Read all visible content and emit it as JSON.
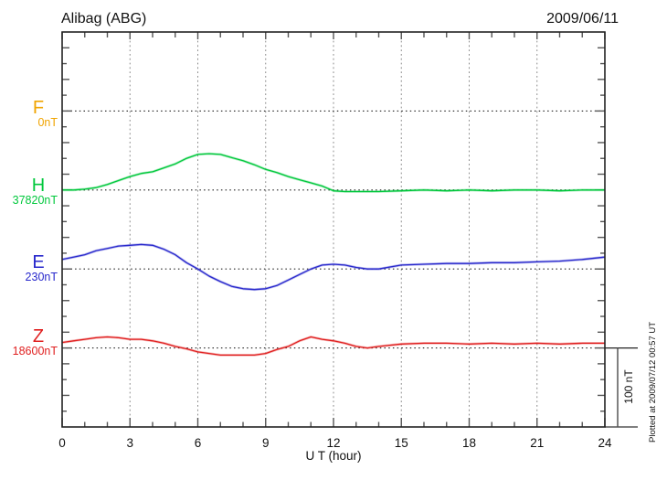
{
  "header": {
    "title": "Alibag (ABG)",
    "date": "2009/06/11"
  },
  "x_axis": {
    "label": "U T (hour)"
  },
  "scale_bar": {
    "label": "100 nT"
  },
  "plotted_note": "Plotted at 2009/07/12 00:57 UT",
  "components": [
    {
      "id": "F",
      "label": "F",
      "baseline_label": "0nT",
      "color": "#f0a400"
    },
    {
      "id": "H",
      "label": "H",
      "baseline_label": "37820nT",
      "color": "#00c83c"
    },
    {
      "id": "E",
      "label": "E",
      "baseline_label": "230nT",
      "color": "#2828cc"
    },
    {
      "id": "Z",
      "label": "Z",
      "baseline_label": "18600nT",
      "color": "#e02020"
    }
  ],
  "chart_data": {
    "type": "line",
    "title": "Alibag (ABG) magnetogram, 2009/06/11",
    "xlabel": "U T (hour)",
    "xlim": [
      0,
      24
    ],
    "x_ticks": [
      0,
      3,
      6,
      9,
      12,
      15,
      18,
      21,
      24
    ],
    "units": "nT offset from component baseline value",
    "scale_bar_nT": 100,
    "grid": {
      "vertical_at_hours": [
        3,
        6,
        9,
        12,
        15,
        18,
        21
      ],
      "horizontal": "dotted line at each component baseline"
    },
    "legend_position": "left margin component labels",
    "x": [
      0,
      0.5,
      1,
      1.5,
      2,
      2.5,
      3,
      3.5,
      4,
      4.5,
      5,
      5.5,
      6,
      6.5,
      7,
      7.5,
      8,
      8.5,
      9,
      9.5,
      10,
      10.5,
      11,
      11.5,
      12,
      12.5,
      13,
      13.5,
      14,
      15,
      16,
      17,
      18,
      19,
      20,
      21,
      22,
      23,
      24
    ],
    "series": [
      {
        "name": "F",
        "baseline_label": "0nT",
        "color": "#f0a400",
        "values": []
      },
      {
        "name": "H",
        "baseline_label": "37820nT",
        "color": "#00c83c",
        "values": [
          0,
          0,
          1,
          3,
          7,
          12,
          17,
          21,
          23,
          28,
          33,
          40,
          45,
          46,
          45,
          41,
          37,
          32,
          26,
          22,
          17,
          13,
          9,
          5,
          -1,
          -2,
          -2,
          -2,
          -2,
          -1,
          0,
          -1,
          0,
          -1,
          0,
          0,
          -1,
          0,
          0
        ]
      },
      {
        "name": "E",
        "baseline_label": "230nT",
        "color": "#2828cc",
        "values": [
          12,
          15,
          18,
          23,
          26,
          29,
          30,
          31,
          30,
          25,
          18,
          8,
          0,
          -9,
          -16,
          -22,
          -25,
          -26,
          -25,
          -21,
          -14,
          -7,
          0,
          5,
          6,
          5,
          2,
          0,
          0,
          5,
          6,
          7,
          7,
          8,
          8,
          9,
          10,
          12,
          15
        ]
      },
      {
        "name": "Z",
        "baseline_label": "18600nT",
        "color": "#e02020",
        "values": [
          7,
          9,
          11,
          13,
          14,
          13,
          11,
          11,
          9,
          6,
          2,
          -1,
          -5,
          -7,
          -9,
          -9,
          -9,
          -9,
          -7,
          -2,
          2,
          9,
          14,
          11,
          9,
          6,
          2,
          0,
          2,
          5,
          6,
          6,
          5,
          6,
          5,
          6,
          5,
          6,
          6
        ]
      }
    ]
  }
}
